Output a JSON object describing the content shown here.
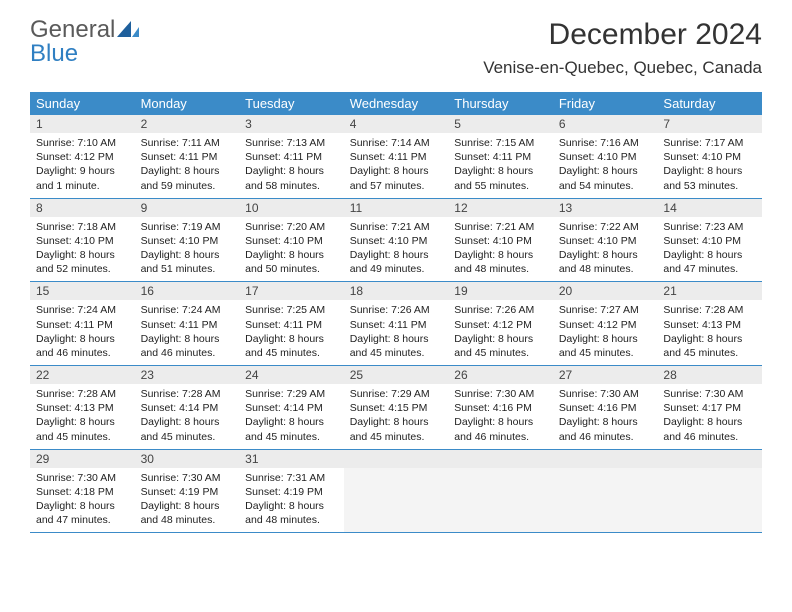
{
  "brand": {
    "part1": "General",
    "part2": "Blue"
  },
  "title": "December 2024",
  "location": "Venise-en-Quebec, Quebec, Canada",
  "colors": {
    "header_bg": "#3b8bc8",
    "header_text": "#ffffff",
    "daynum_bg": "#ececec",
    "border": "#3b8bc8",
    "text": "#222222",
    "logo_gray": "#5a5a5a",
    "logo_blue": "#2f7fc2"
  },
  "day_names": [
    "Sunday",
    "Monday",
    "Tuesday",
    "Wednesday",
    "Thursday",
    "Friday",
    "Saturday"
  ],
  "days": [
    {
      "n": 1,
      "sr": "Sunrise: 7:10 AM",
      "ss": "Sunset: 4:12 PM",
      "d1": "Daylight: 9 hours",
      "d2": "and 1 minute."
    },
    {
      "n": 2,
      "sr": "Sunrise: 7:11 AM",
      "ss": "Sunset: 4:11 PM",
      "d1": "Daylight: 8 hours",
      "d2": "and 59 minutes."
    },
    {
      "n": 3,
      "sr": "Sunrise: 7:13 AM",
      "ss": "Sunset: 4:11 PM",
      "d1": "Daylight: 8 hours",
      "d2": "and 58 minutes."
    },
    {
      "n": 4,
      "sr": "Sunrise: 7:14 AM",
      "ss": "Sunset: 4:11 PM",
      "d1": "Daylight: 8 hours",
      "d2": "and 57 minutes."
    },
    {
      "n": 5,
      "sr": "Sunrise: 7:15 AM",
      "ss": "Sunset: 4:11 PM",
      "d1": "Daylight: 8 hours",
      "d2": "and 55 minutes."
    },
    {
      "n": 6,
      "sr": "Sunrise: 7:16 AM",
      "ss": "Sunset: 4:10 PM",
      "d1": "Daylight: 8 hours",
      "d2": "and 54 minutes."
    },
    {
      "n": 7,
      "sr": "Sunrise: 7:17 AM",
      "ss": "Sunset: 4:10 PM",
      "d1": "Daylight: 8 hours",
      "d2": "and 53 minutes."
    },
    {
      "n": 8,
      "sr": "Sunrise: 7:18 AM",
      "ss": "Sunset: 4:10 PM",
      "d1": "Daylight: 8 hours",
      "d2": "and 52 minutes."
    },
    {
      "n": 9,
      "sr": "Sunrise: 7:19 AM",
      "ss": "Sunset: 4:10 PM",
      "d1": "Daylight: 8 hours",
      "d2": "and 51 minutes."
    },
    {
      "n": 10,
      "sr": "Sunrise: 7:20 AM",
      "ss": "Sunset: 4:10 PM",
      "d1": "Daylight: 8 hours",
      "d2": "and 50 minutes."
    },
    {
      "n": 11,
      "sr": "Sunrise: 7:21 AM",
      "ss": "Sunset: 4:10 PM",
      "d1": "Daylight: 8 hours",
      "d2": "and 49 minutes."
    },
    {
      "n": 12,
      "sr": "Sunrise: 7:21 AM",
      "ss": "Sunset: 4:10 PM",
      "d1": "Daylight: 8 hours",
      "d2": "and 48 minutes."
    },
    {
      "n": 13,
      "sr": "Sunrise: 7:22 AM",
      "ss": "Sunset: 4:10 PM",
      "d1": "Daylight: 8 hours",
      "d2": "and 48 minutes."
    },
    {
      "n": 14,
      "sr": "Sunrise: 7:23 AM",
      "ss": "Sunset: 4:10 PM",
      "d1": "Daylight: 8 hours",
      "d2": "and 47 minutes."
    },
    {
      "n": 15,
      "sr": "Sunrise: 7:24 AM",
      "ss": "Sunset: 4:11 PM",
      "d1": "Daylight: 8 hours",
      "d2": "and 46 minutes."
    },
    {
      "n": 16,
      "sr": "Sunrise: 7:24 AM",
      "ss": "Sunset: 4:11 PM",
      "d1": "Daylight: 8 hours",
      "d2": "and 46 minutes."
    },
    {
      "n": 17,
      "sr": "Sunrise: 7:25 AM",
      "ss": "Sunset: 4:11 PM",
      "d1": "Daylight: 8 hours",
      "d2": "and 45 minutes."
    },
    {
      "n": 18,
      "sr": "Sunrise: 7:26 AM",
      "ss": "Sunset: 4:11 PM",
      "d1": "Daylight: 8 hours",
      "d2": "and 45 minutes."
    },
    {
      "n": 19,
      "sr": "Sunrise: 7:26 AM",
      "ss": "Sunset: 4:12 PM",
      "d1": "Daylight: 8 hours",
      "d2": "and 45 minutes."
    },
    {
      "n": 20,
      "sr": "Sunrise: 7:27 AM",
      "ss": "Sunset: 4:12 PM",
      "d1": "Daylight: 8 hours",
      "d2": "and 45 minutes."
    },
    {
      "n": 21,
      "sr": "Sunrise: 7:28 AM",
      "ss": "Sunset: 4:13 PM",
      "d1": "Daylight: 8 hours",
      "d2": "and 45 minutes."
    },
    {
      "n": 22,
      "sr": "Sunrise: 7:28 AM",
      "ss": "Sunset: 4:13 PM",
      "d1": "Daylight: 8 hours",
      "d2": "and 45 minutes."
    },
    {
      "n": 23,
      "sr": "Sunrise: 7:28 AM",
      "ss": "Sunset: 4:14 PM",
      "d1": "Daylight: 8 hours",
      "d2": "and 45 minutes."
    },
    {
      "n": 24,
      "sr": "Sunrise: 7:29 AM",
      "ss": "Sunset: 4:14 PM",
      "d1": "Daylight: 8 hours",
      "d2": "and 45 minutes."
    },
    {
      "n": 25,
      "sr": "Sunrise: 7:29 AM",
      "ss": "Sunset: 4:15 PM",
      "d1": "Daylight: 8 hours",
      "d2": "and 45 minutes."
    },
    {
      "n": 26,
      "sr": "Sunrise: 7:30 AM",
      "ss": "Sunset: 4:16 PM",
      "d1": "Daylight: 8 hours",
      "d2": "and 46 minutes."
    },
    {
      "n": 27,
      "sr": "Sunrise: 7:30 AM",
      "ss": "Sunset: 4:16 PM",
      "d1": "Daylight: 8 hours",
      "d2": "and 46 minutes."
    },
    {
      "n": 28,
      "sr": "Sunrise: 7:30 AM",
      "ss": "Sunset: 4:17 PM",
      "d1": "Daylight: 8 hours",
      "d2": "and 46 minutes."
    },
    {
      "n": 29,
      "sr": "Sunrise: 7:30 AM",
      "ss": "Sunset: 4:18 PM",
      "d1": "Daylight: 8 hours",
      "d2": "and 47 minutes."
    },
    {
      "n": 30,
      "sr": "Sunrise: 7:30 AM",
      "ss": "Sunset: 4:19 PM",
      "d1": "Daylight: 8 hours",
      "d2": "and 48 minutes."
    },
    {
      "n": 31,
      "sr": "Sunrise: 7:31 AM",
      "ss": "Sunset: 4:19 PM",
      "d1": "Daylight: 8 hours",
      "d2": "and 48 minutes."
    }
  ],
  "grid": {
    "first_day_offset": 0,
    "total_cells": 35
  }
}
